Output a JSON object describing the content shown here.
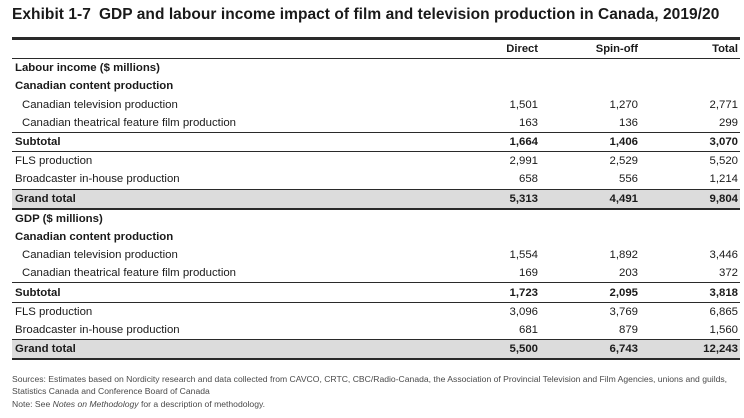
{
  "title": {
    "exhibit": "Exhibit 1-7",
    "text": "GDP and labour income impact of film and television production in Canada, 2019/20"
  },
  "columns": [
    "Direct",
    "Spin-off",
    "Total"
  ],
  "sections": [
    {
      "heading": "Labour income ($ millions)",
      "group_heading": "Canadian content production",
      "items": [
        {
          "label": "Canadian television production",
          "values": [
            "1,501",
            "1,270",
            "2,771"
          ]
        },
        {
          "label": "Canadian theatrical feature film production",
          "values": [
            "163",
            "136",
            "299"
          ]
        }
      ],
      "subtotal": {
        "label": "Subtotal",
        "values": [
          "1,664",
          "1,406",
          "3,070"
        ]
      },
      "others": [
        {
          "label": "FLS production",
          "values": [
            "2,991",
            "2,529",
            "5,520"
          ]
        },
        {
          "label": "Broadcaster in-house production",
          "values": [
            "658",
            "556",
            "1,214"
          ]
        }
      ],
      "grand_total": {
        "label": "Grand total",
        "values": [
          "5,313",
          "4,491",
          "9,804"
        ]
      }
    },
    {
      "heading": "GDP ($ millions)",
      "group_heading": "Canadian content production",
      "items": [
        {
          "label": "Canadian television production",
          "values": [
            "1,554",
            "1,892",
            "3,446"
          ]
        },
        {
          "label": "Canadian theatrical feature film production",
          "values": [
            "169",
            "203",
            "372"
          ]
        }
      ],
      "subtotal": {
        "label": "Subtotal",
        "values": [
          "1,723",
          "2,095",
          "3,818"
        ]
      },
      "others": [
        {
          "label": "FLS production",
          "values": [
            "3,096",
            "3,769",
            "6,865"
          ]
        },
        {
          "label": "Broadcaster in-house production",
          "values": [
            "681",
            "879",
            "1,560"
          ]
        }
      ],
      "grand_total": {
        "label": "Grand total",
        "values": [
          "5,500",
          "6,743",
          "12,243"
        ]
      }
    }
  ],
  "footnote": {
    "sources": "Sources: Estimates based on Nordicity research and data collected from CAVCO, CRTC, CBC/Radio-Canada, the Association of Provincial Television and Film Agencies, unions and guilds, Statistics Canada and Conference Board of Canada",
    "note_prefix": "Note: See ",
    "note_italic": "Notes on Methodology",
    "note_suffix": " for a description of methodology."
  },
  "colors": {
    "grand_total_fill": "#dcdcdc",
    "rule": "#2a2a2a",
    "footnote_text": "#4a4a4a"
  }
}
